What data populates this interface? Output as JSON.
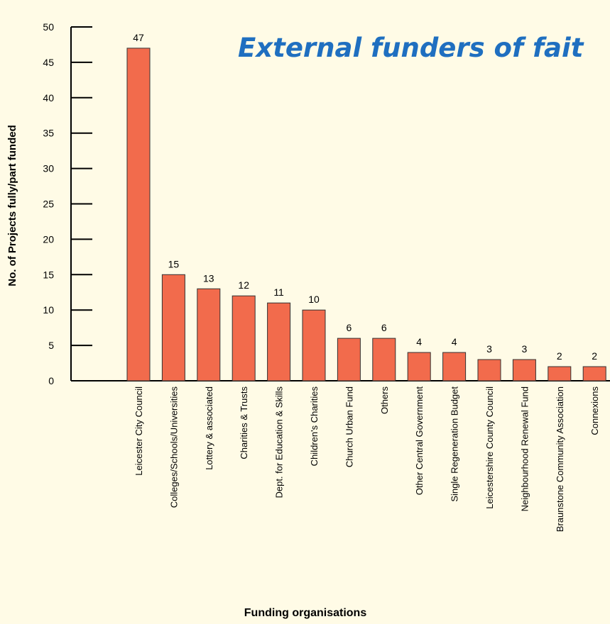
{
  "chart_data": {
    "type": "bar",
    "title": "External funders of fait",
    "y_label": "No. of Projects fully/part funded",
    "x_label": "Funding organisations",
    "categories": [
      "Leicester City Council",
      "Colleges/Schools/Universities",
      "Lottery & associated",
      "Charities & Trusts",
      "Dept. for Education & Skills",
      "Children's Charities",
      "Church Urban Fund",
      "Others",
      "Other Central Government",
      "Single Regeneration Budget",
      "Leicestershire County Council",
      "Neighbourhood Renewal Fund",
      "Braunstone Community Association",
      "Connexions"
    ],
    "values": [
      47,
      15,
      13,
      12,
      11,
      10,
      6,
      6,
      4,
      4,
      3,
      3,
      2,
      2
    ],
    "color": "#f26b4c",
    "ylim": [
      0,
      50
    ],
    "yticks": [
      0,
      5,
      10,
      15,
      20,
      25,
      30,
      35,
      40,
      45,
      50
    ]
  }
}
